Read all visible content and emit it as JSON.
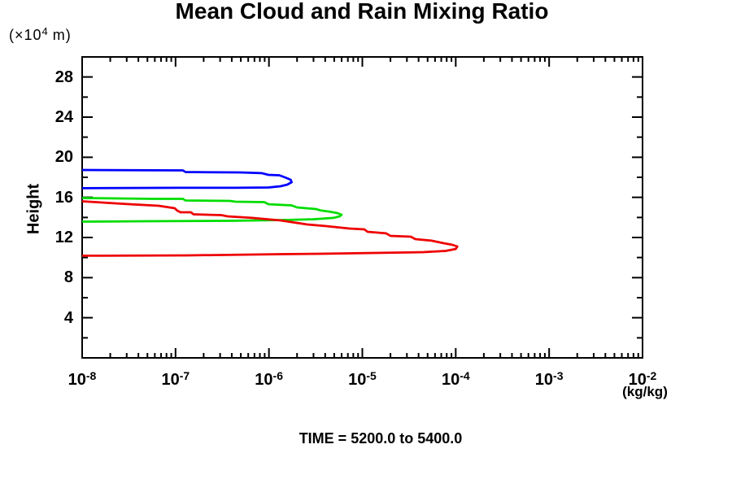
{
  "chart_data": {
    "type": "line",
    "title": "Mean Cloud and Rain Mixing Ratio",
    "ylabel": "Height",
    "y_unit": {
      "prefix": "(×10",
      "exp": "4",
      "suffix": " m)"
    },
    "xlabel_unit": "(kg/kg)",
    "annotation": "TIME = 5200.0 to 5400.0",
    "x_scale": "log",
    "x_range": [
      1e-08,
      0.01
    ],
    "x_ticks": [
      {
        "base": "10",
        "exp": "-8"
      },
      {
        "base": "10",
        "exp": "-7"
      },
      {
        "base": "10",
        "exp": "-6"
      },
      {
        "base": "10",
        "exp": "-5"
      },
      {
        "base": "10",
        "exp": "-4"
      },
      {
        "base": "10",
        "exp": "-3"
      },
      {
        "base": "10",
        "exp": "-2"
      }
    ],
    "y_range": [
      0,
      30
    ],
    "y_major_ticks": [
      4,
      8,
      12,
      16,
      20,
      24,
      28
    ],
    "y_minor_ticks": [
      2,
      6,
      10,
      14,
      18,
      22,
      26
    ],
    "grid": false,
    "legend": "none",
    "series": [
      {
        "name": "blue-profile",
        "color": "#0000ff",
        "points_value_height": [
          [
            1e-08,
            18.73
          ],
          [
            1.2e-07,
            18.69
          ],
          [
            1.28e-07,
            18.53
          ],
          [
            4.9e-07,
            18.49
          ],
          [
            8.4e-07,
            18.41
          ],
          [
            9.9e-07,
            18.24
          ],
          [
            1.29e-06,
            18.2
          ],
          [
            1.48e-06,
            18.0
          ],
          [
            1.71e-06,
            17.76
          ],
          [
            1.75e-06,
            17.51
          ],
          [
            1.57e-06,
            17.27
          ],
          [
            1.33e-06,
            17.11
          ],
          [
            9.9e-07,
            16.99
          ],
          [
            4.4e-07,
            16.95
          ],
          [
            1.1e-07,
            16.95
          ],
          [
            1e-08,
            16.91
          ]
        ]
      },
      {
        "name": "green-profile",
        "color": "#00dd00",
        "points_value_height": [
          [
            1e-08,
            15.93
          ],
          [
            5.7e-08,
            15.85
          ],
          [
            1.2e-07,
            15.85
          ],
          [
            1.28e-07,
            15.69
          ],
          [
            3.8e-07,
            15.65
          ],
          [
            4.4e-07,
            15.57
          ],
          [
            8.9e-07,
            15.53
          ],
          [
            9.9e-07,
            15.32
          ],
          [
            1.75e-06,
            15.2
          ],
          [
            2e-06,
            15.0
          ],
          [
            3.17e-06,
            14.84
          ],
          [
            3.63e-06,
            14.68
          ],
          [
            4.4e-06,
            14.59
          ],
          [
            5.4e-06,
            14.43
          ],
          [
            6e-06,
            14.27
          ],
          [
            5.7e-06,
            14.11
          ],
          [
            4.9e-06,
            13.95
          ],
          [
            2.96e-06,
            13.82
          ],
          [
            1.48e-06,
            13.74
          ],
          [
            3.8e-07,
            13.66
          ],
          [
            4.9e-08,
            13.62
          ],
          [
            1e-08,
            13.58
          ]
        ]
      },
      {
        "name": "red-profile",
        "color": "#ee0000",
        "points_value_height": [
          [
            1e-08,
            15.61
          ],
          [
            3.3e-08,
            15.32
          ],
          [
            6.6e-08,
            15.16
          ],
          [
            9.8e-08,
            14.92
          ],
          [
            1.04e-07,
            14.68
          ],
          [
            1.13e-07,
            14.51
          ],
          [
            1.46e-07,
            14.51
          ],
          [
            1.56e-07,
            14.31
          ],
          [
            3.1e-07,
            14.23
          ],
          [
            3.6e-07,
            14.11
          ],
          [
            6.6e-07,
            13.95
          ],
          [
            1.33e-06,
            13.7
          ],
          [
            2.58e-06,
            13.3
          ],
          [
            4e-06,
            13.14
          ],
          [
            7.3e-06,
            12.89
          ],
          [
            1.05e-05,
            12.81
          ],
          [
            1.14e-05,
            12.57
          ],
          [
            1.8e-05,
            12.41
          ],
          [
            2e-05,
            12.16
          ],
          [
            3.3e-05,
            12.08
          ],
          [
            3.7e-05,
            11.84
          ],
          [
            5.5e-05,
            11.68
          ],
          [
            7.4e-05,
            11.43
          ],
          [
            9.2e-05,
            11.27
          ],
          [
            0.000104,
            11.11
          ],
          [
            0.0001,
            10.86
          ],
          [
            7.8e-05,
            10.66
          ],
          [
            4.5e-05,
            10.54
          ],
          [
            1.34e-05,
            10.46
          ],
          [
            3.6e-06,
            10.38
          ],
          [
            1.33e-06,
            10.34
          ],
          [
            1.33e-07,
            10.22
          ],
          [
            1e-08,
            10.18
          ]
        ]
      }
    ]
  }
}
